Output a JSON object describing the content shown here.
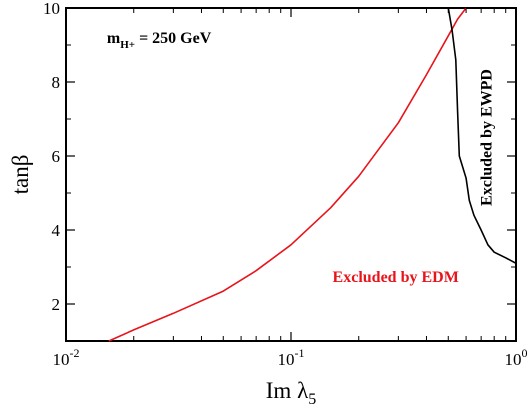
{
  "chart_data": {
    "type": "line",
    "title": "",
    "xlabel": "Im λ5",
    "xlabel_main": "Im λ",
    "xlabel_sub": "5",
    "ylabel": "tanβ",
    "xscale": "log",
    "xlim": [
      0.01,
      1
    ],
    "ylim": [
      1,
      10
    ],
    "grid": false,
    "x_ticks": [
      {
        "value": 0.01,
        "base": "10",
        "exp": "-2"
      },
      {
        "value": 0.1,
        "base": "10",
        "exp": "-1"
      },
      {
        "value": 1,
        "base": "10",
        "exp": "0"
      }
    ],
    "y_ticks": [
      2,
      4,
      6,
      8,
      10
    ],
    "series": [
      {
        "color": "#e8141b",
        "x": [
          0.0155,
          0.02,
          0.03,
          0.05,
          0.07,
          0.1,
          0.15,
          0.2,
          0.3,
          0.4,
          0.5,
          0.55,
          0.6
        ],
        "y": [
          1.0,
          1.3,
          1.75,
          2.35,
          2.9,
          3.6,
          4.6,
          5.45,
          6.9,
          8.2,
          9.25,
          9.7,
          10.0
        ]
      },
      {
        "color": "#000000",
        "x": [
          0.5,
          0.52,
          0.54,
          0.55,
          0.56,
          0.6,
          0.62,
          0.65,
          0.7,
          0.75,
          0.8,
          0.9,
          1.0
        ],
        "y": [
          10.0,
          9.4,
          8.6,
          7.2,
          6.0,
          5.4,
          4.8,
          4.4,
          4.0,
          3.6,
          3.4,
          3.25,
          3.1
        ]
      }
    ],
    "annotations": [
      {
        "id": "mass",
        "text": "m",
        "sub": "H+",
        "rest": " = 250 GeV",
        "color": "#000000",
        "x": 0.0152,
        "y": 9.05
      },
      {
        "id": "edm",
        "text": "Excluded by EDM",
        "color": "#e8141b",
        "x": 0.153,
        "y": 2.6
      },
      {
        "id": "ewpd",
        "text": "Excluded by EWPD",
        "color": "#000000",
        "x": 0.78,
        "y": 6.5
      }
    ]
  }
}
